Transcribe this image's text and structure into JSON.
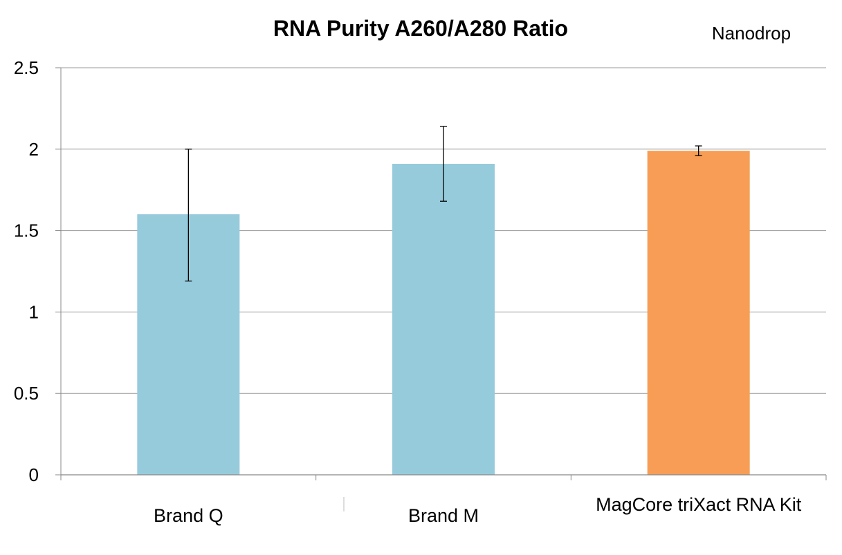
{
  "chart_data": {
    "type": "bar",
    "title": "RNA Purity A260/A280 Ratio",
    "annotation": "Nanodrop",
    "xlabel": "",
    "ylabel": "",
    "categories": [
      "Brand Q",
      "Brand M",
      "MagCore triXact RNA Kit"
    ],
    "values": [
      1.6,
      1.91,
      1.99
    ],
    "error_low": [
      1.19,
      1.68,
      1.96
    ],
    "error_high": [
      2.0,
      2.14,
      2.02
    ],
    "bar_colors": [
      "#96cbdc",
      "#96cbdc",
      "#f79d55"
    ],
    "ylim": [
      0,
      2.5
    ],
    "yticks": [
      0,
      0.5,
      1,
      1.5,
      2,
      2.5
    ],
    "ytick_labels": [
      "0",
      "0.5",
      "1",
      "1.5",
      "2",
      "2.5"
    ],
    "grid": true,
    "legend": "none",
    "grid_color": "#999999",
    "axis_color": "#888888",
    "error_color": "#000000"
  }
}
